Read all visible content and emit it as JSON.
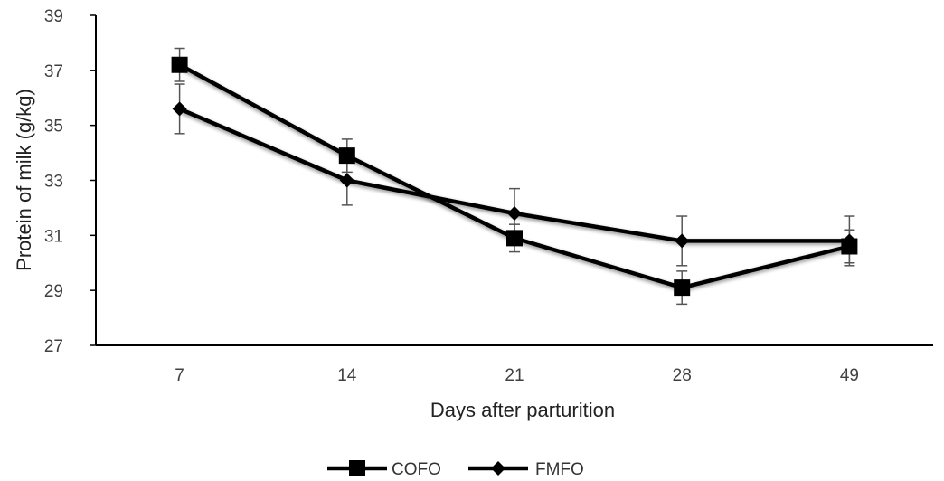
{
  "chart_data": {
    "type": "line",
    "title": "",
    "xlabel": "Days after parturition",
    "ylabel": "Protein of milk (g/kg)",
    "categories": [
      "7",
      "14",
      "21",
      "28",
      "49"
    ],
    "ylim": [
      27,
      39
    ],
    "yticks": [
      27,
      29,
      31,
      33,
      35,
      37,
      39
    ],
    "grid": false,
    "legend_position": "bottom",
    "series": [
      {
        "name": "COFO",
        "marker": "square",
        "color": "#000000",
        "values": [
          37.2,
          33.9,
          30.9,
          29.1,
          30.6
        ],
        "error": [
          0.6,
          0.6,
          0.5,
          0.6,
          0.6
        ]
      },
      {
        "name": "FMFO",
        "marker": "diamond",
        "color": "#000000",
        "values": [
          35.6,
          33.0,
          31.8,
          30.8,
          30.8
        ],
        "error": [
          0.9,
          0.9,
          0.9,
          0.9,
          0.9
        ]
      }
    ]
  }
}
